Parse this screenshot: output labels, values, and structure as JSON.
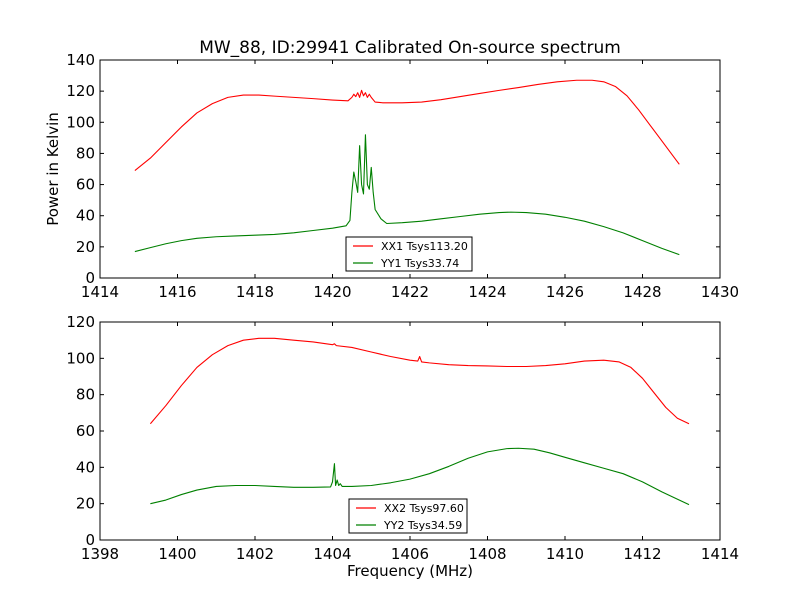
{
  "figure": {
    "title": "MW_88, ID:29941 Calibrated On-source spectrum",
    "ylabel": "Power in Kelvin",
    "xlabel": "Frequency (MHz)"
  },
  "colors": {
    "xx": "#ff0000",
    "yy": "#008000",
    "axes": "#000000",
    "background": "#ffffff"
  },
  "chart_data": [
    {
      "type": "line",
      "xlim": [
        1414,
        1430
      ],
      "ylim": [
        0,
        140
      ],
      "xticks": [
        "1414",
        "1416",
        "1418",
        "1420",
        "1422",
        "1424",
        "1426",
        "1428",
        "1430"
      ],
      "yticks": [
        "0",
        "20",
        "40",
        "60",
        "80",
        "100",
        "120",
        "140"
      ],
      "legend": "lower-center",
      "grid": false,
      "series": [
        {
          "name": "XX1 Tsys113.20",
          "color": "#ff0000",
          "points": [
            [
              1414.9,
              69
            ],
            [
              1415.3,
              77
            ],
            [
              1415.7,
              87
            ],
            [
              1416.1,
              97
            ],
            [
              1416.5,
              106
            ],
            [
              1416.9,
              112
            ],
            [
              1417.3,
              116
            ],
            [
              1417.7,
              117.5
            ],
            [
              1418.1,
              117.5
            ],
            [
              1418.5,
              116.8
            ],
            [
              1419.0,
              116
            ],
            [
              1419.5,
              115.2
            ],
            [
              1420.0,
              114.3
            ],
            [
              1420.4,
              113.8
            ],
            [
              1420.5,
              116
            ],
            [
              1420.55,
              118
            ],
            [
              1420.6,
              116.5
            ],
            [
              1420.65,
              119
            ],
            [
              1420.7,
              116
            ],
            [
              1420.75,
              120.5
            ],
            [
              1420.8,
              117
            ],
            [
              1420.85,
              119
            ],
            [
              1420.9,
              116
            ],
            [
              1420.95,
              118
            ],
            [
              1421.0,
              116
            ],
            [
              1421.1,
              113
            ],
            [
              1421.3,
              112.5
            ],
            [
              1421.8,
              112.5
            ],
            [
              1422.3,
              113
            ],
            [
              1422.8,
              114.5
            ],
            [
              1423.3,
              116.5
            ],
            [
              1423.8,
              118.5
            ],
            [
              1424.3,
              120.5
            ],
            [
              1424.8,
              122.3
            ],
            [
              1425.3,
              124.3
            ],
            [
              1425.8,
              126
            ],
            [
              1426.3,
              127
            ],
            [
              1426.7,
              127
            ],
            [
              1427.0,
              126
            ],
            [
              1427.3,
              123
            ],
            [
              1427.6,
              117
            ],
            [
              1427.9,
              108
            ],
            [
              1428.2,
              98
            ],
            [
              1428.5,
              88
            ],
            [
              1428.8,
              78
            ],
            [
              1428.95,
              73
            ]
          ]
        },
        {
          "name": "YY1 Tsys33.74",
          "color": "#008000",
          "points": [
            [
              1414.9,
              17
            ],
            [
              1415.3,
              19.5
            ],
            [
              1415.7,
              22
            ],
            [
              1416.1,
              24
            ],
            [
              1416.5,
              25.5
            ],
            [
              1417.0,
              26.5
            ],
            [
              1417.5,
              27
            ],
            [
              1418.0,
              27.5
            ],
            [
              1418.5,
              28
            ],
            [
              1419.0,
              29
            ],
            [
              1419.5,
              30.5
            ],
            [
              1420.0,
              32
            ],
            [
              1420.35,
              33.5
            ],
            [
              1420.45,
              37
            ],
            [
              1420.5,
              55
            ],
            [
              1420.55,
              68
            ],
            [
              1420.6,
              62
            ],
            [
              1420.65,
              55
            ],
            [
              1420.7,
              85
            ],
            [
              1420.75,
              60
            ],
            [
              1420.8,
              54
            ],
            [
              1420.85,
              92
            ],
            [
              1420.9,
              60
            ],
            [
              1420.95,
              57
            ],
            [
              1421.0,
              71
            ],
            [
              1421.05,
              55
            ],
            [
              1421.1,
              44
            ],
            [
              1421.25,
              38
            ],
            [
              1421.4,
              35
            ],
            [
              1421.8,
              35.5
            ],
            [
              1422.3,
              36.5
            ],
            [
              1422.8,
              38
            ],
            [
              1423.3,
              39.5
            ],
            [
              1423.8,
              41
            ],
            [
              1424.3,
              42
            ],
            [
              1424.6,
              42.3
            ],
            [
              1425.0,
              42
            ],
            [
              1425.5,
              41
            ],
            [
              1426.0,
              39
            ],
            [
              1426.5,
              36.5
            ],
            [
              1427.0,
              33
            ],
            [
              1427.5,
              29
            ],
            [
              1428.0,
              24
            ],
            [
              1428.5,
              19
            ],
            [
              1428.95,
              15
            ]
          ]
        }
      ]
    },
    {
      "type": "line",
      "xlim": [
        1398,
        1414
      ],
      "ylim": [
        0,
        120
      ],
      "xticks": [
        "1398",
        "1400",
        "1402",
        "1404",
        "1406",
        "1408",
        "1410",
        "1412",
        "1414"
      ],
      "yticks": [
        "0",
        "20",
        "40",
        "60",
        "80",
        "100",
        "120"
      ],
      "legend": "lower-center",
      "grid": false,
      "series": [
        {
          "name": "XX2 Tsys97.60",
          "color": "#ff0000",
          "points": [
            [
              1399.3,
              64
            ],
            [
              1399.7,
              74
            ],
            [
              1400.1,
              85
            ],
            [
              1400.5,
              95
            ],
            [
              1400.9,
              102
            ],
            [
              1401.3,
              107
            ],
            [
              1401.7,
              110
            ],
            [
              1402.1,
              111
            ],
            [
              1402.5,
              111
            ],
            [
              1403.0,
              110
            ],
            [
              1403.5,
              109
            ],
            [
              1404.0,
              107.5
            ],
            [
              1404.05,
              108
            ],
            [
              1404.1,
              107
            ],
            [
              1404.5,
              106
            ],
            [
              1405.0,
              103.5
            ],
            [
              1405.5,
              101
            ],
            [
              1406.0,
              99
            ],
            [
              1406.2,
              98.5
            ],
            [
              1406.25,
              101
            ],
            [
              1406.3,
              98
            ],
            [
              1406.5,
              97.5
            ],
            [
              1407.0,
              96.5
            ],
            [
              1407.5,
              96
            ],
            [
              1408.0,
              95.8
            ],
            [
              1408.5,
              95.5
            ],
            [
              1409.0,
              95.5
            ],
            [
              1409.5,
              96
            ],
            [
              1410.0,
              97
            ],
            [
              1410.5,
              98.5
            ],
            [
              1411.0,
              99
            ],
            [
              1411.4,
              98
            ],
            [
              1411.7,
              95
            ],
            [
              1412.0,
              89
            ],
            [
              1412.3,
              81
            ],
            [
              1412.6,
              73
            ],
            [
              1412.9,
              67
            ],
            [
              1413.2,
              64
            ]
          ]
        },
        {
          "name": "YY2 Tsys34.59",
          "color": "#008000",
          "points": [
            [
              1399.3,
              20
            ],
            [
              1399.7,
              22
            ],
            [
              1400.1,
              25
            ],
            [
              1400.5,
              27.5
            ],
            [
              1401.0,
              29.5
            ],
            [
              1401.5,
              30
            ],
            [
              1402.0,
              30
            ],
            [
              1402.5,
              29.5
            ],
            [
              1403.0,
              29
            ],
            [
              1403.5,
              29
            ],
            [
              1403.95,
              29.2
            ],
            [
              1404.0,
              32
            ],
            [
              1404.05,
              42
            ],
            [
              1404.08,
              30
            ],
            [
              1404.12,
              33
            ],
            [
              1404.16,
              30
            ],
            [
              1404.2,
              31
            ],
            [
              1404.25,
              29.5
            ],
            [
              1404.5,
              29.5
            ],
            [
              1405.0,
              30
            ],
            [
              1405.5,
              31.5
            ],
            [
              1406.0,
              33.5
            ],
            [
              1406.5,
              36.5
            ],
            [
              1407.0,
              40.5
            ],
            [
              1407.5,
              45
            ],
            [
              1408.0,
              48.5
            ],
            [
              1408.5,
              50.3
            ],
            [
              1408.8,
              50.5
            ],
            [
              1409.2,
              50
            ],
            [
              1409.6,
              48
            ],
            [
              1410.0,
              45.5
            ],
            [
              1410.5,
              42.5
            ],
            [
              1411.0,
              39.5
            ],
            [
              1411.5,
              36.5
            ],
            [
              1412.0,
              32
            ],
            [
              1412.5,
              26.5
            ],
            [
              1413.0,
              21.5
            ],
            [
              1413.2,
              19.5
            ]
          ]
        }
      ]
    }
  ]
}
